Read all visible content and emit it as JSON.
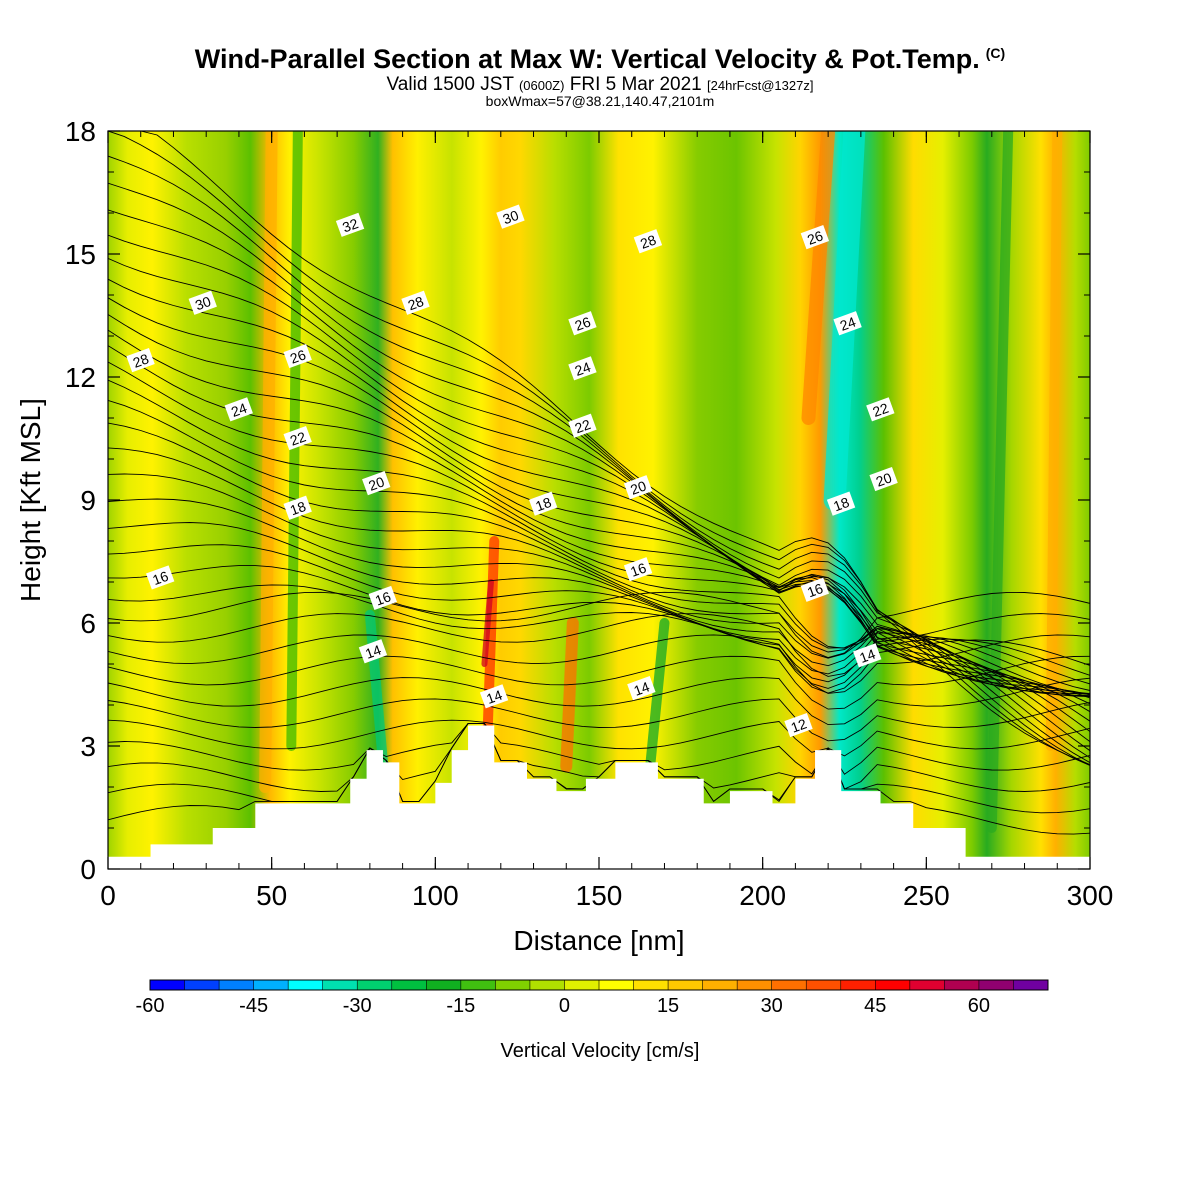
{
  "header": {
    "title": "Wind-Parallel Section at Max W: Vertical Velocity & Pot.Temp.",
    "copyright": "(C)",
    "valid_prefix": "Valid 1500 JST",
    "valid_z": "(0600Z)",
    "valid_date": "FRI 5 Mar 2021",
    "forecast": "[24hrFcst@1327z]",
    "boxwmax": "boxWmax=57@38.21,140.47,2101m"
  },
  "chart_data": {
    "type": "heatmap",
    "title": "Wind-Parallel Section at Max W: Vertical Velocity & Pot.Temp.",
    "xlabel": "Distance [nm]",
    "ylabel": "Height [Kft MSL]",
    "xlim": [
      0,
      300
    ],
    "ylim": [
      0,
      18
    ],
    "x_ticks": [
      0,
      50,
      100,
      150,
      200,
      250,
      300
    ],
    "y_ticks": [
      0,
      3,
      6,
      9,
      12,
      15,
      18
    ],
    "colorbar": {
      "label": "Vertical Velocity [cm/s]",
      "min": -60,
      "max": 70,
      "ticks": [
        -60,
        -45,
        -30,
        -15,
        0,
        15,
        30,
        45,
        60
      ],
      "colors": [
        "#0000ff",
        "#0040ff",
        "#0080ff",
        "#00b0ff",
        "#00ffff",
        "#00e0b0",
        "#00d070",
        "#00c040",
        "#10b020",
        "#40c010",
        "#80d000",
        "#b0e000",
        "#e0f000",
        "#ffff00",
        "#ffe000",
        "#ffc800",
        "#ffb000",
        "#ff9000",
        "#ff7000",
        "#ff5000",
        "#ff2000",
        "#ff0000",
        "#e00030",
        "#b00050",
        "#900070",
        "#7000a0"
      ]
    },
    "theta_contour_labels": [
      {
        "x": 10,
        "y": 12.4,
        "value": "28"
      },
      {
        "x": 29,
        "y": 13.8,
        "value": "30"
      },
      {
        "x": 40,
        "y": 11.2,
        "value": "24"
      },
      {
        "x": 58,
        "y": 12.5,
        "value": "26"
      },
      {
        "x": 58,
        "y": 10.5,
        "value": "22"
      },
      {
        "x": 74,
        "y": 15.7,
        "value": "32"
      },
      {
        "x": 82,
        "y": 9.4,
        "value": "20"
      },
      {
        "x": 58,
        "y": 8.8,
        "value": "18"
      },
      {
        "x": 16,
        "y": 7.1,
        "value": "16"
      },
      {
        "x": 84,
        "y": 6.6,
        "value": "16"
      },
      {
        "x": 81,
        "y": 5.3,
        "value": "14"
      },
      {
        "x": 118,
        "y": 4.2,
        "value": "14"
      },
      {
        "x": 94,
        "y": 13.8,
        "value": "28"
      },
      {
        "x": 123,
        "y": 15.9,
        "value": "30"
      },
      {
        "x": 165,
        "y": 15.3,
        "value": "28"
      },
      {
        "x": 145,
        "y": 13.3,
        "value": "26"
      },
      {
        "x": 145,
        "y": 12.2,
        "value": "24"
      },
      {
        "x": 145,
        "y": 10.8,
        "value": "22"
      },
      {
        "x": 133,
        "y": 8.9,
        "value": "18"
      },
      {
        "x": 162,
        "y": 9.3,
        "value": "20"
      },
      {
        "x": 162,
        "y": 7.3,
        "value": "16"
      },
      {
        "x": 163,
        "y": 4.4,
        "value": "14"
      },
      {
        "x": 216,
        "y": 15.4,
        "value": "26"
      },
      {
        "x": 226,
        "y": 13.3,
        "value": "24"
      },
      {
        "x": 236,
        "y": 11.2,
        "value": "22"
      },
      {
        "x": 237,
        "y": 9.5,
        "value": "20"
      },
      {
        "x": 224,
        "y": 8.9,
        "value": "18"
      },
      {
        "x": 216,
        "y": 6.8,
        "value": "16"
      },
      {
        "x": 232,
        "y": 5.2,
        "value": "14"
      },
      {
        "x": 211,
        "y": 3.5,
        "value": "12"
      }
    ],
    "terrain_top_kft": [
      {
        "x": 0,
        "y": 0.3
      },
      {
        "x": 13,
        "y": 0.6
      },
      {
        "x": 24,
        "y": 0.6
      },
      {
        "x": 32,
        "y": 1.0
      },
      {
        "x": 45,
        "y": 1.6
      },
      {
        "x": 74,
        "y": 2.2
      },
      {
        "x": 79,
        "y": 2.9
      },
      {
        "x": 84,
        "y": 2.6
      },
      {
        "x": 89,
        "y": 1.6
      },
      {
        "x": 100,
        "y": 2.1
      },
      {
        "x": 105,
        "y": 2.9
      },
      {
        "x": 110,
        "y": 3.5
      },
      {
        "x": 118,
        "y": 2.6
      },
      {
        "x": 128,
        "y": 2.2
      },
      {
        "x": 137,
        "y": 1.9
      },
      {
        "x": 146,
        "y": 2.2
      },
      {
        "x": 155,
        "y": 2.6
      },
      {
        "x": 168,
        "y": 2.2
      },
      {
        "x": 182,
        "y": 1.6
      },
      {
        "x": 190,
        "y": 1.9
      },
      {
        "x": 203,
        "y": 1.6
      },
      {
        "x": 210,
        "y": 2.2
      },
      {
        "x": 216,
        "y": 2.9
      },
      {
        "x": 224,
        "y": 1.9
      },
      {
        "x": 236,
        "y": 1.6
      },
      {
        "x": 246,
        "y": 1.0
      },
      {
        "x": 262,
        "y": 0.3
      },
      {
        "x": 300,
        "y": 0.3
      }
    ]
  }
}
